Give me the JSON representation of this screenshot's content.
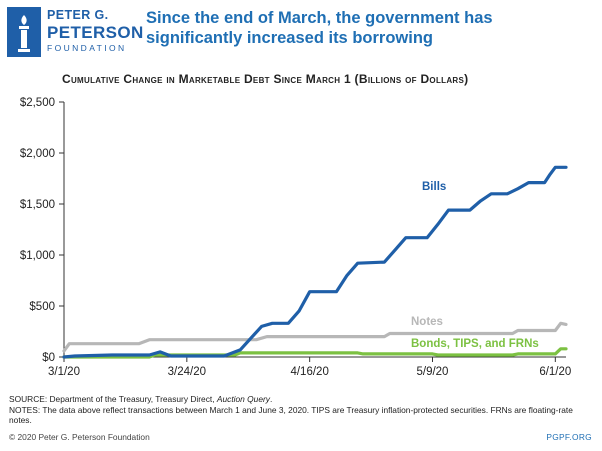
{
  "branding": {
    "logo_line1": "PETER G.",
    "logo_line2": "PETERSON",
    "logo_line3": "FOUNDATION",
    "colors": {
      "brand_blue": "#1f5fa8",
      "headline_blue": "#1f6fb4"
    }
  },
  "headline": "Since the end of March, the government has significantly increased its borrowing",
  "chart_data": {
    "type": "line",
    "title": "Cumulative Change in Marketable Debt Since March 1 (Billions of Dollars)",
    "xlabel": "",
    "ylabel": "",
    "x_tick_labels": [
      "3/1/20",
      "3/24/20",
      "4/16/20",
      "5/9/20",
      "6/1/20"
    ],
    "x_range": [
      "2020-03-01",
      "2020-06-03"
    ],
    "y_tick_labels": [
      "$0",
      "$500",
      "$1,000",
      "$1,500",
      "$2,000",
      "$2,500"
    ],
    "ylim": [
      0,
      2500
    ],
    "grid": false,
    "legend": "labels placed next to lines",
    "series": [
      {
        "name": "Bills",
        "color": "#1f5fa8",
        "points": [
          [
            "2020-03-01",
            0
          ],
          [
            "2020-03-03",
            10
          ],
          [
            "2020-03-10",
            20
          ],
          [
            "2020-03-17",
            20
          ],
          [
            "2020-03-19",
            50
          ],
          [
            "2020-03-21",
            10
          ],
          [
            "2020-03-31",
            10
          ],
          [
            "2020-04-03",
            70
          ],
          [
            "2020-04-07",
            300
          ],
          [
            "2020-04-09",
            330
          ],
          [
            "2020-04-12",
            330
          ],
          [
            "2020-04-14",
            450
          ],
          [
            "2020-04-16",
            640
          ],
          [
            "2020-04-21",
            640
          ],
          [
            "2020-04-23",
            800
          ],
          [
            "2020-04-25",
            920
          ],
          [
            "2020-04-30",
            930
          ],
          [
            "2020-05-02",
            1050
          ],
          [
            "2020-05-04",
            1170
          ],
          [
            "2020-05-08",
            1170
          ],
          [
            "2020-05-10",
            1300
          ],
          [
            "2020-05-12",
            1440
          ],
          [
            "2020-05-16",
            1440
          ],
          [
            "2020-05-18",
            1530
          ],
          [
            "2020-05-20",
            1600
          ],
          [
            "2020-05-23",
            1600
          ],
          [
            "2020-05-25",
            1650
          ],
          [
            "2020-05-27",
            1710
          ],
          [
            "2020-05-30",
            1710
          ],
          [
            "2020-05-31",
            1790
          ],
          [
            "2020-06-01",
            1860
          ],
          [
            "2020-06-03",
            1860
          ]
        ]
      },
      {
        "name": "Notes",
        "color": "#b7b7b7",
        "points": [
          [
            "2020-03-01",
            60
          ],
          [
            "2020-03-02",
            130
          ],
          [
            "2020-03-15",
            130
          ],
          [
            "2020-03-17",
            170
          ],
          [
            "2020-04-06",
            170
          ],
          [
            "2020-04-08",
            200
          ],
          [
            "2020-04-30",
            200
          ],
          [
            "2020-05-01",
            230
          ],
          [
            "2020-05-24",
            230
          ],
          [
            "2020-05-25",
            260
          ],
          [
            "2020-06-01",
            260
          ],
          [
            "2020-06-02",
            330
          ],
          [
            "2020-06-03",
            320
          ]
        ]
      },
      {
        "name": "Bonds, TIPS, and FRNs",
        "color": "#7cc142",
        "points": [
          [
            "2020-03-01",
            0
          ],
          [
            "2020-03-17",
            0
          ],
          [
            "2020-03-18",
            20
          ],
          [
            "2020-04-02",
            20
          ],
          [
            "2020-04-03",
            40
          ],
          [
            "2020-04-25",
            40
          ],
          [
            "2020-04-26",
            30
          ],
          [
            "2020-05-09",
            30
          ],
          [
            "2020-05-10",
            20
          ],
          [
            "2020-05-24",
            20
          ],
          [
            "2020-05-25",
            30
          ],
          [
            "2020-06-01",
            30
          ],
          [
            "2020-06-02",
            80
          ],
          [
            "2020-06-03",
            80
          ]
        ]
      }
    ]
  },
  "source_line": "SOURCE: Department of the Treasury, Treasury Direct, ",
  "source_italic": "Auction Query",
  "source_end": ".",
  "notes": "NOTES: The data above reflect transactions between March 1 and June 3, 2020. TIPS are Treasury inflation-protected securities. FRNs are floating-rate notes.",
  "copyright": "© 2020 Peter G. Peterson Foundation",
  "site": "PGPF.ORG"
}
